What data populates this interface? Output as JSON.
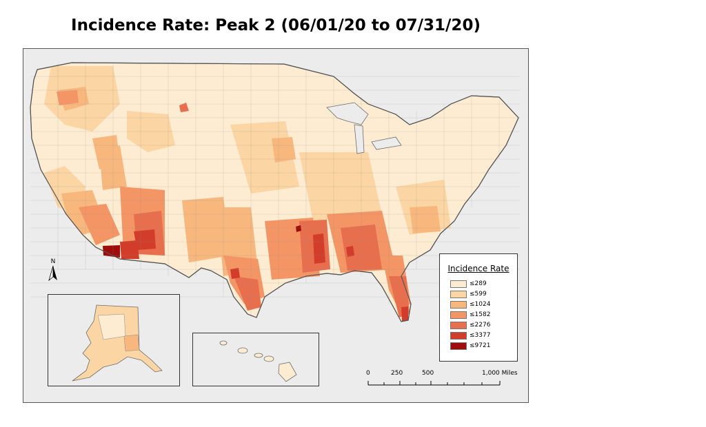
{
  "title": "Incidence Rate: Peak 2 (06/01/20 to 07/31/20)",
  "north_label": "N",
  "legend": {
    "title": "Incidence Rate",
    "items": [
      {
        "label": "≤289",
        "color": "#fdecd2"
      },
      {
        "label": "≤599",
        "color": "#fbd5a3"
      },
      {
        "label": "≤1024",
        "color": "#f8b77d"
      },
      {
        "label": "≤1582",
        "color": "#f49565"
      },
      {
        "label": "≤2276",
        "color": "#e86f4e"
      },
      {
        "label": "≤3377",
        "color": "#d23c2a"
      },
      {
        "label": "≤9721",
        "color": "#9e0c0c"
      }
    ]
  },
  "scale": {
    "labels": [
      "0",
      "250",
      "500",
      "1,000 Miles"
    ]
  }
}
